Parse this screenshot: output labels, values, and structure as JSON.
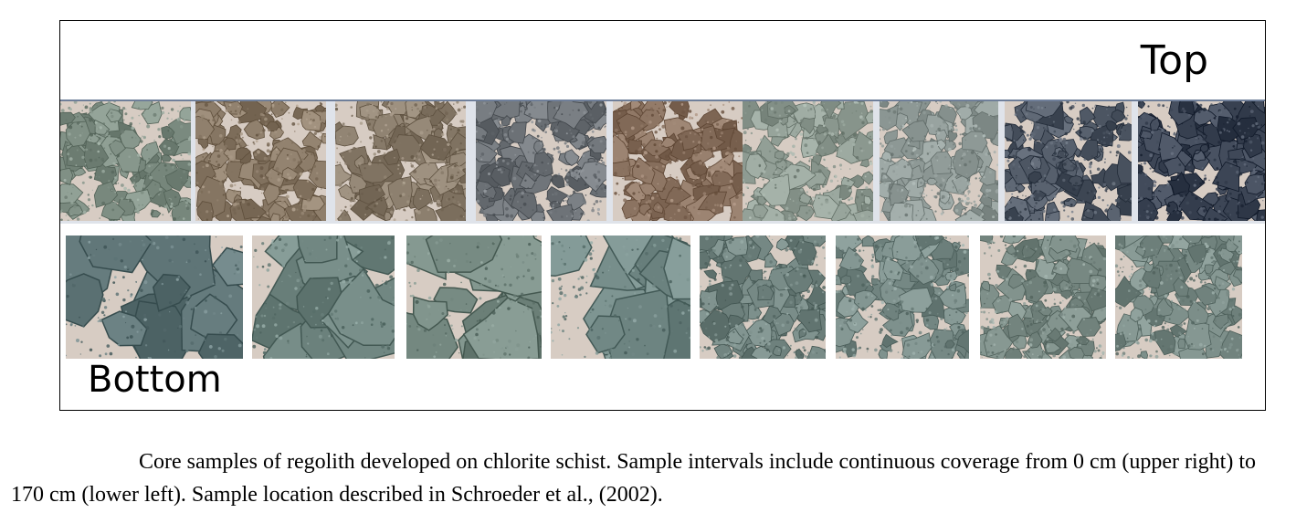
{
  "labels": {
    "top": "Top",
    "bottom": "Bottom"
  },
  "caption": "Core samples of regolith developed on chlorite schist. Sample intervals include continuous coverage from 0 cm (upper right) to 170 cm (lower left). Sample location described in Schroeder et al., (2002).",
  "colors": {
    "background": "#d7ccc3",
    "top_row_tones": [
      "#7f8f84",
      "#8b7b68",
      "#8a7d6c",
      "#6f7479",
      "#8a7260",
      "#8e9b92",
      "#8f9a97",
      "#4f5865",
      "#3d4656"
    ],
    "bottom_row_tones": [
      "#63797b",
      "#6f8580",
      "#71857d",
      "#6f8683",
      "#6f827e",
      "#778a86",
      "#7b8c86",
      "#7a8c87"
    ]
  }
}
